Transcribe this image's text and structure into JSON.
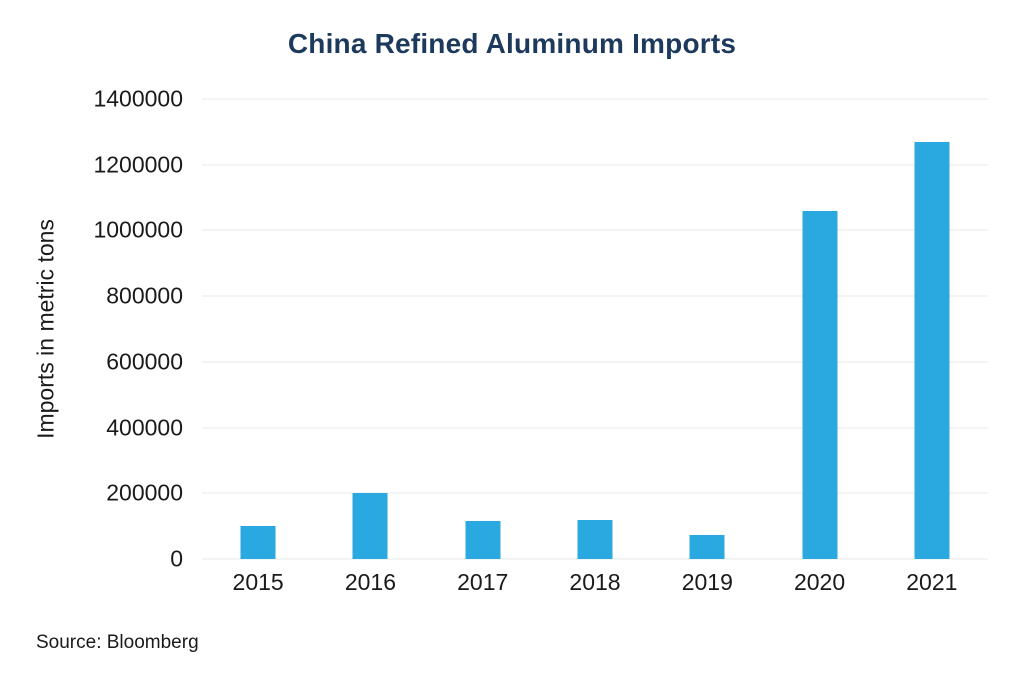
{
  "chart_data": {
    "type": "bar",
    "title": "China Refined Aluminum Imports",
    "xlabel": "",
    "ylabel": "Imports in metric tons",
    "categories": [
      "2015",
      "2016",
      "2017",
      "2018",
      "2019",
      "2020",
      "2021"
    ],
    "values": [
      100000,
      200000,
      115000,
      120000,
      73000,
      1060000,
      1270000
    ],
    "ylim": [
      0,
      1400000
    ],
    "yticks": [
      0,
      200000,
      400000,
      600000,
      800000,
      1000000,
      1200000,
      1400000
    ],
    "grid": true,
    "legend_position": "none",
    "colors": {
      "bar": "#29a9e0",
      "title": "#1d3a5c",
      "text": "#1a1a1a",
      "gridline": "#eaeaea"
    }
  },
  "source": {
    "label": "Source: Bloomberg"
  }
}
